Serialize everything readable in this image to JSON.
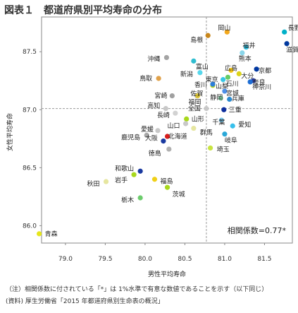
{
  "title": "図表１　都道府県別平均寿命の分布",
  "notes": [
    "（注）相関係数に付されている「*」は 1%水準で有意な数値であることを示す（以下同じ）",
    "(資料) 厚生労働省「2015 年都道府県別生命表の概況」"
  ],
  "chart_data": {
    "type": "scatter",
    "title": "",
    "xlabel": "男性平均寿命",
    "ylabel": "女性平均寿命",
    "xlim": [
      78.7,
      81.85
    ],
    "ylim": [
      85.85,
      87.8
    ],
    "xticks": [
      79.0,
      79.5,
      80.0,
      80.5,
      81.0,
      81.5
    ],
    "yticks": [
      86.0,
      86.5,
      87.0,
      87.5
    ],
    "reference_lines": {
      "x": 80.77,
      "y": 87.01
    },
    "annotation": "相関係数=0.77*",
    "points": [
      {
        "name": "長野",
        "x": 81.75,
        "y": 87.67,
        "color": "#00b0c8"
      },
      {
        "name": "岡山",
        "x": 81.03,
        "y": 87.67,
        "color": "#f3a81c"
      },
      {
        "name": "滋賀",
        "x": 81.78,
        "y": 87.57,
        "color": "#00389e"
      },
      {
        "name": "島根",
        "x": 80.79,
        "y": 87.64,
        "color": "#c8861b"
      },
      {
        "name": "福井",
        "x": 81.27,
        "y": 87.54,
        "color": "#2fc6e8"
      },
      {
        "name": "熊本",
        "x": 81.22,
        "y": 87.49,
        "color": "#8ad6ea"
      },
      {
        "name": "沖縄",
        "x": 80.27,
        "y": 87.45,
        "color": "#a4a4a4"
      },
      {
        "name": "富山",
        "x": 80.61,
        "y": 87.42,
        "color": "#2fbdd0"
      },
      {
        "name": "広島",
        "x": 81.08,
        "y": 87.34,
        "color": "#f0c418"
      },
      {
        "name": "京都",
        "x": 81.4,
        "y": 87.35,
        "color": "#0037a0"
      },
      {
        "name": "新潟",
        "x": 80.69,
        "y": 87.32,
        "color": "#57d7ec"
      },
      {
        "name": "大分",
        "x": 81.18,
        "y": 87.31,
        "color": "#dcd41a"
      },
      {
        "name": "石川",
        "x": 81.04,
        "y": 87.28,
        "color": "#66cc66"
      },
      {
        "name": "奈良",
        "x": 81.36,
        "y": 87.25,
        "color": "#2d3e9e"
      },
      {
        "name": "鳥取",
        "x": 80.17,
        "y": 87.27,
        "color": "#e0a14a"
      },
      {
        "name": "東京",
        "x": 80.98,
        "y": 87.26,
        "color": "#38c6e4"
      },
      {
        "name": "香川",
        "x": 80.85,
        "y": 87.21,
        "color": "#bfd81c"
      },
      {
        "name": "山梨",
        "x": 80.85,
        "y": 87.22,
        "color": "#2e7fd8"
      },
      {
        "name": "神奈川",
        "x": 81.32,
        "y": 87.24,
        "color": "#1e6ed4"
      },
      {
        "name": "宮城",
        "x": 81.0,
        "y": 87.16,
        "color": "#4d8fe8"
      },
      {
        "name": "宮崎",
        "x": 80.34,
        "y": 87.12,
        "color": "#a0a0a0"
      },
      {
        "name": "佐賀",
        "x": 80.65,
        "y": 87.12,
        "color": "#c8c8c8"
      },
      {
        "name": "福岡",
        "x": 80.66,
        "y": 87.12,
        "color": "#e0c838"
      },
      {
        "name": "静岡",
        "x": 80.95,
        "y": 87.1,
        "color": "#84d4a8"
      },
      {
        "name": "兵庫",
        "x": 81.06,
        "y": 87.09,
        "color": "#2a8ad0"
      },
      {
        "name": "高知",
        "x": 80.26,
        "y": 87.01,
        "color": "#c8c8c8"
      },
      {
        "name": "全国",
        "x": 80.77,
        "y": 87.01,
        "color": "#c8c8c8"
      },
      {
        "name": "三重",
        "x": 80.99,
        "y": 87.0,
        "color": "#0e2f9e"
      },
      {
        "name": "長崎",
        "x": 80.38,
        "y": 86.97,
        "color": "#d2d2d2"
      },
      {
        "name": "山形",
        "x": 80.52,
        "y": 86.92,
        "color": "#a8d81c"
      },
      {
        "name": "千葉",
        "x": 80.96,
        "y": 86.91,
        "color": "#78c8ec"
      },
      {
        "name": "愛知",
        "x": 81.1,
        "y": 86.86,
        "color": "#38c0ec"
      },
      {
        "name": "山口",
        "x": 80.51,
        "y": 86.88,
        "color": "#c8c8c8"
      },
      {
        "name": "群馬",
        "x": 80.61,
        "y": 86.84,
        "color": "#e6e6a0"
      },
      {
        "name": "愛媛",
        "x": 80.16,
        "y": 86.82,
        "color": "#c8c8c8"
      },
      {
        "name": "岐阜",
        "x": 81.0,
        "y": 86.79,
        "color": "#2aa8d8"
      },
      {
        "name": "鹿児島",
        "x": 80.02,
        "y": 86.78,
        "color": "#a8a8a8"
      },
      {
        "name": "大阪",
        "x": 80.23,
        "y": 86.73,
        "color": "#1a3aa0"
      },
      {
        "name": "北海道",
        "x": 80.28,
        "y": 86.77,
        "color": "#d81c1c"
      },
      {
        "name": "埼玉",
        "x": 80.82,
        "y": 86.67,
        "color": "#c8e440"
      },
      {
        "name": "徳島",
        "x": 80.3,
        "y": 86.66,
        "color": "#b0b0b0"
      },
      {
        "name": "和歌山",
        "x": 79.94,
        "y": 86.47,
        "color": "#1a3aa0"
      },
      {
        "name": "岩手",
        "x": 79.86,
        "y": 86.44,
        "color": "#a8d81c"
      },
      {
        "name": "秋田",
        "x": 79.51,
        "y": 86.38,
        "color": "#e6e6a0"
      },
      {
        "name": "福島",
        "x": 80.12,
        "y": 86.4,
        "color": "#f0d018"
      },
      {
        "name": "茨城",
        "x": 80.28,
        "y": 86.33,
        "color": "#a8d81c"
      },
      {
        "name": "栃木",
        "x": 79.94,
        "y": 86.24,
        "color": "#6ccc6c"
      },
      {
        "name": "青森",
        "x": 78.67,
        "y": 85.93,
        "color": "#e6e61c"
      }
    ]
  }
}
